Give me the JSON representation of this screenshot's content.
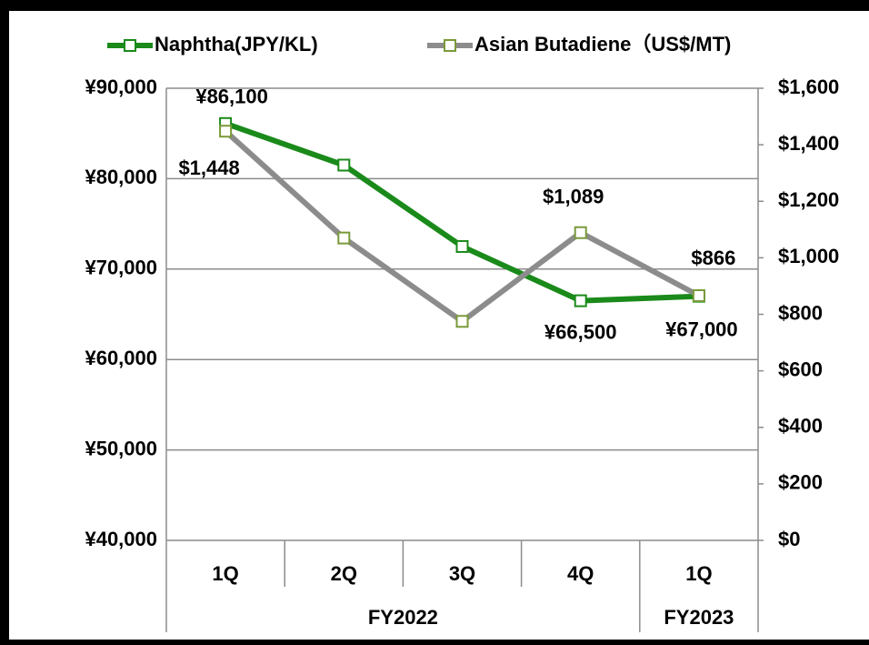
{
  "chart_data": {
    "type": "line",
    "groups": [
      {
        "label": "FY2022",
        "categories": [
          "1Q",
          "2Q",
          "3Q",
          "4Q"
        ]
      },
      {
        "label": "FY2023",
        "categories": [
          "1Q"
        ]
      }
    ],
    "series": [
      {
        "name": "Naphtha(JPY/KL)",
        "color": "#1a8a1a",
        "values": [
          86100,
          81500,
          72500,
          66500,
          67000
        ],
        "value_labels": [
          "¥86,100",
          null,
          null,
          "¥66,500",
          "¥67,000"
        ]
      },
      {
        "name": "Asian Butadiene（US$/MT)",
        "color": "#8c8c8c",
        "axis": "y2",
        "values": [
          1448,
          1070,
          775,
          1089,
          866
        ],
        "value_labels": [
          "$1,448",
          null,
          null,
          "$1,089",
          "$866"
        ]
      }
    ],
    "ylim": [
      40000,
      90000
    ],
    "yticks": [
      {
        "value": 40000,
        "label": "¥40,000"
      },
      {
        "value": 50000,
        "label": "¥50,000"
      },
      {
        "value": 60000,
        "label": "¥60,000"
      },
      {
        "value": 70000,
        "label": "¥70,000"
      },
      {
        "value": 80000,
        "label": "¥80,000"
      },
      {
        "value": 90000,
        "label": "¥90,000"
      }
    ],
    "y2lim": [
      0,
      1600
    ],
    "y2ticks": [
      {
        "value": 0,
        "label": "$0"
      },
      {
        "value": 200,
        "label": "$200"
      },
      {
        "value": 400,
        "label": "$400"
      },
      {
        "value": 600,
        "label": "$600"
      },
      {
        "value": 800,
        "label": "$800"
      },
      {
        "value": 1000,
        "label": "$1,000"
      },
      {
        "value": 1200,
        "label": "$1,200"
      },
      {
        "value": 1400,
        "label": "$1,400"
      },
      {
        "value": 1600,
        "label": "$1,600"
      }
    ],
    "grid": true,
    "legend": "top"
  }
}
